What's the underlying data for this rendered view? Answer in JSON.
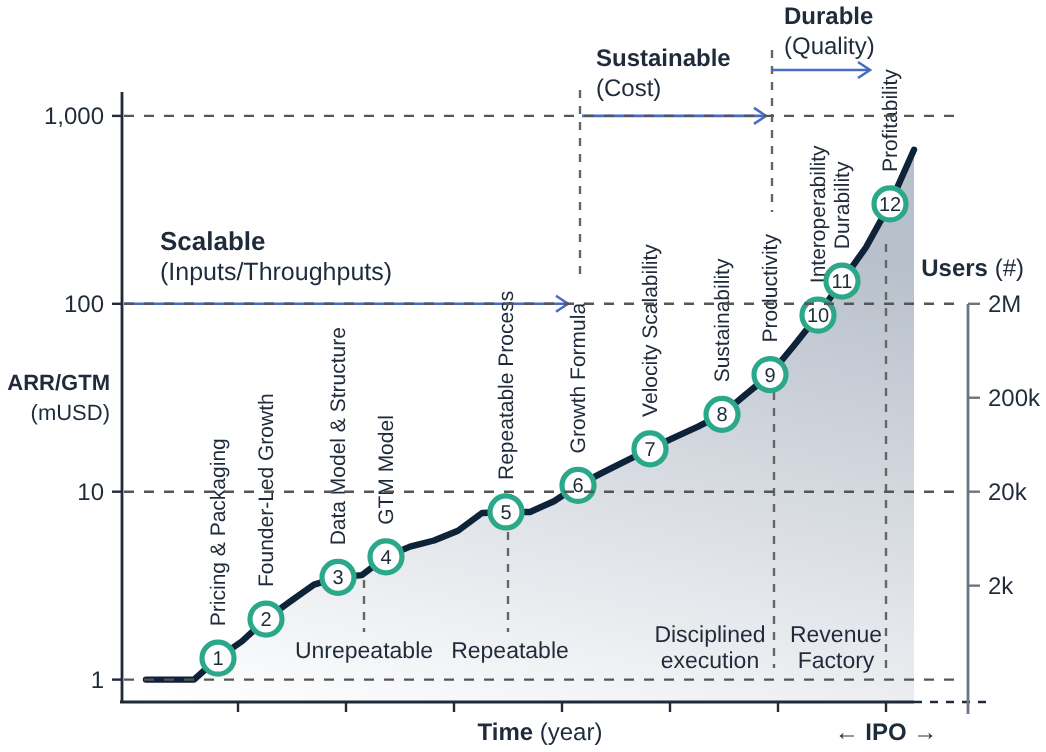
{
  "chart_data": {
    "type": "area",
    "xlabel": "Time (year)",
    "ylabel": "ARR/GTM (mUSD)",
    "y2label": "Users (#)",
    "categories": [
      null,
      null,
      null,
      null,
      null,
      null,
      null,
      null,
      null,
      null,
      null,
      null,
      null,
      null,
      null,
      null,
      null,
      null,
      null,
      null,
      null,
      null,
      null,
      null,
      null,
      null,
      null,
      null,
      null,
      null,
      null,
      null,
      null
    ],
    "ylim": [
      0.76,
      1340
    ],
    "yticks": [
      1,
      10,
      100,
      {
        "value": 1000,
        "label": "1,000"
      }
    ],
    "log": "y",
    "grid": "y",
    "series": [
      {
        "color": "#0e2238",
        "values": [
          1,
          1,
          1,
          1.3,
          1.6,
          2.1,
          2.6,
          3.2,
          3.5,
          3.6,
          4.5,
          5.1,
          5.5,
          6.2,
          7.7,
          7.8,
          7.8,
          8.9,
          10.8,
          12.6,
          14.6,
          16.9,
          19.4,
          22.2,
          25.8,
          33,
          42,
          60,
          87,
          132,
          200,
          340,
          660
        ]
      }
    ],
    "annotations": [
      "Scalable",
      "(Inputs/Throughputs)",
      "Sustainable",
      "(Cost)",
      "Durable",
      "(Quality)",
      "← IPO →",
      "Unrepeatable",
      "Repeatable",
      "Disciplined execution",
      "Revenue Factory",
      "2M",
      "200k",
      "20k",
      "2k",
      "1",
      "Pricing & Packaging",
      "2",
      "Founder-Led Growth",
      "3",
      "Data Model & Structure",
      "4",
      "GTM Model",
      "5",
      "Repeatable Process",
      "6",
      "Growth Formula",
      "7",
      "Velocity Scalability",
      "8",
      "Sustainability",
      "9",
      "Productivity",
      "10",
      "Interoperability",
      "11",
      "Durability",
      "12",
      "Profitability"
    ]
  }
}
